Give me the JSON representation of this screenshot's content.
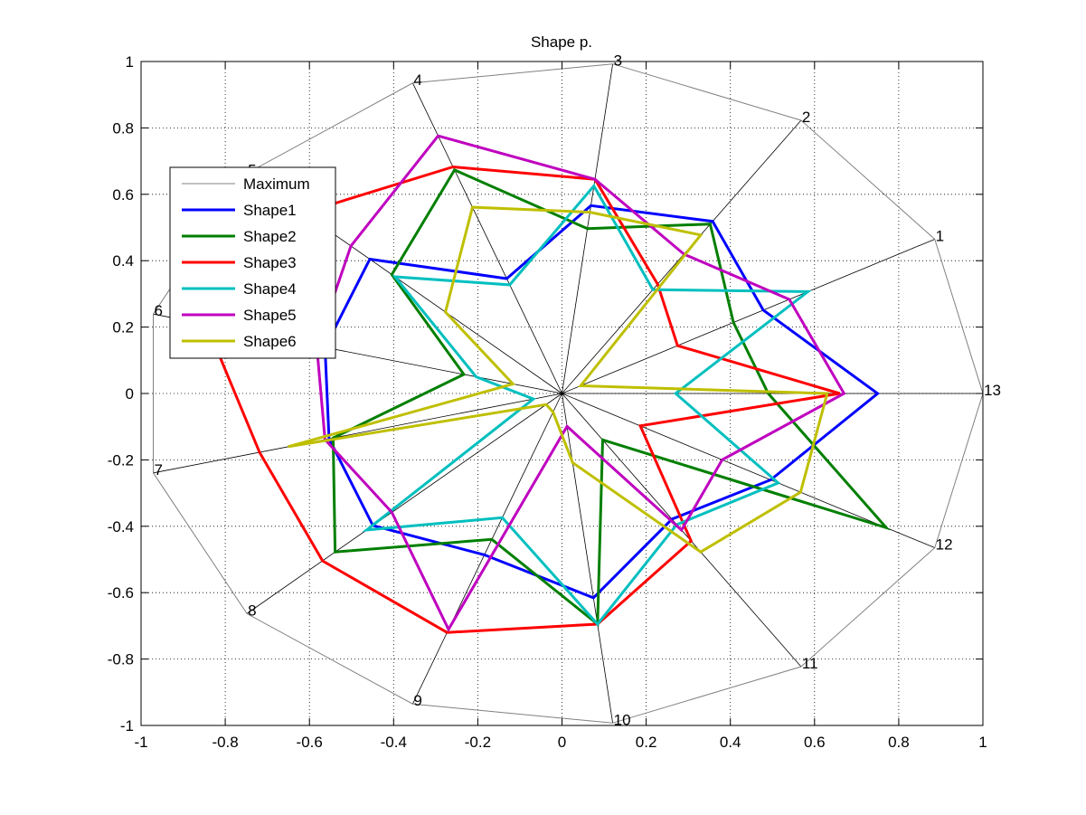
{
  "chart_data": {
    "type": "radar",
    "title": "Shape p.",
    "xlim": [
      -1,
      1
    ],
    "ylim": [
      -1,
      1
    ],
    "x_ticks": [
      -1,
      -0.8,
      -0.6,
      -0.4,
      -0.2,
      0,
      0.2,
      0.4,
      0.6,
      0.8,
      1
    ],
    "y_ticks": [
      -1,
      -0.8,
      -0.6,
      -0.4,
      -0.2,
      0,
      0.2,
      0.4,
      0.6,
      0.8,
      1
    ],
    "x_tick_labels": [
      "-1",
      "-0.8",
      "-0.6",
      "-0.4",
      "-0.2",
      "0",
      "0.2",
      "0.4",
      "0.6",
      "0.8",
      "1"
    ],
    "y_tick_labels": [
      "-1",
      "-0.8",
      "-0.6",
      "-0.4",
      "-0.2",
      "0",
      "0.2",
      "0.4",
      "0.6",
      "0.8",
      "1"
    ],
    "grid": true,
    "legend_position": "upper-left",
    "spoke_labels": [
      "1",
      "2",
      "3",
      "4",
      "5",
      "6",
      "7",
      "8",
      "9",
      "10",
      "11",
      "12",
      "13"
    ],
    "series": [
      {
        "name": "Maximum",
        "color": "#808080",
        "values": [
          1,
          1,
          1,
          1,
          1,
          1,
          1,
          1,
          1,
          1,
          1,
          1,
          1
        ]
      },
      {
        "name": "Shape1",
        "color": "#0000ff",
        "values": [
          0.54,
          0.63,
          0.57,
          0.37,
          0.61,
          0.58,
          0.57,
          0.6,
          0.52,
          0.62,
          0.46,
          0.56,
          0.75
        ]
      },
      {
        "name": "Shape2",
        "color": "#007f00",
        "values": [
          0.46,
          0.62,
          0.5,
          0.72,
          0.54,
          0.24,
          0.56,
          0.72,
          0.47,
          0.7,
          0.17,
          0.87,
          0.49
        ]
      },
      {
        "name": "Shape3",
        "color": "#ff0000",
        "values": [
          0.31,
          0.4,
          0.65,
          0.73,
          0.82,
          0.87,
          0.74,
          0.76,
          0.77,
          0.7,
          0.54,
          0.21,
          0.66
        ]
      },
      {
        "name": "Shape4",
        "color": "#00bfbf",
        "values": [
          0.66,
          0.38,
          0.63,
          0.35,
          0.53,
          0.21,
          0.07,
          0.62,
          0.4,
          0.7,
          0.48,
          0.58,
          0.27
        ]
      },
      {
        "name": "Shape5",
        "color": "#bf00bf",
        "values": [
          0.61,
          0.51,
          0.65,
          0.83,
          0.67,
          0.6,
          0.58,
          0.54,
          0.76,
          0.1,
          0.5,
          0.43,
          0.67
        ]
      },
      {
        "name": "Shape6",
        "color": "#bfbf00",
        "values": [
          0.05,
          0.58,
          0.55,
          0.6,
          0.37,
          0.12,
          0.67,
          0.05,
          0.06,
          0.21,
          0.58,
          0.64,
          0.63
        ]
      }
    ]
  }
}
